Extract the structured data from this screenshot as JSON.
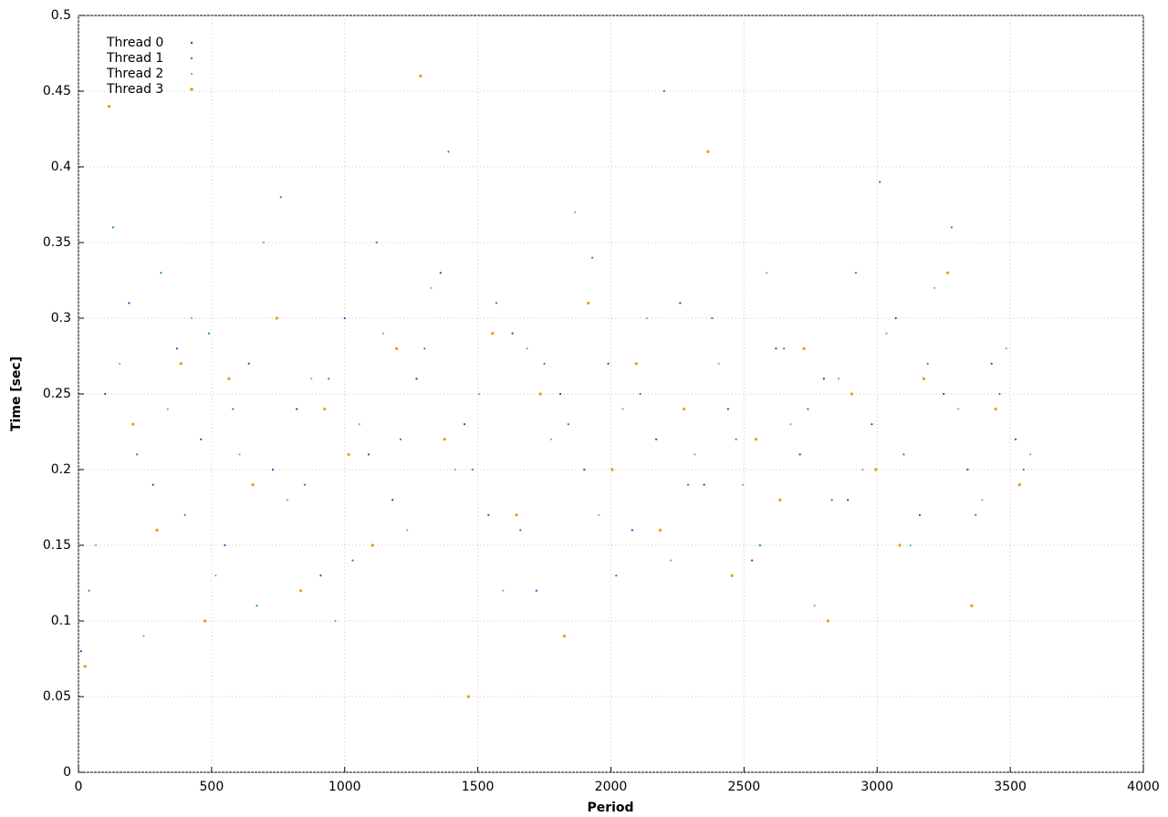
{
  "chart_data": {
    "type": "scatter",
    "x_label": "Period",
    "y_label": "Time [sec]",
    "xlim": [
      0,
      4000
    ],
    "xticks": [
      0,
      500,
      1000,
      1500,
      2000,
      2500,
      3000,
      3500,
      4000
    ],
    "ylim": [
      0,
      0.5
    ],
    "yticks": [
      0,
      0.05,
      0.1,
      0.15,
      0.2,
      0.25,
      0.3,
      0.35,
      0.4,
      0.45,
      0.5
    ],
    "grid": true,
    "legend": "top-left",
    "series": [
      {
        "name": "Thread 0",
        "color": "#9400d3",
        "x": [
          10,
          100,
          190,
          280,
          370,
          460,
          550,
          640,
          730,
          820,
          910,
          1000,
          1090,
          1180,
          1270,
          1360,
          1450,
          1540,
          1630,
          1720,
          1810,
          1900,
          1990,
          2080,
          2170,
          2260,
          2350,
          2440,
          2530,
          2620,
          2710,
          2800,
          2890,
          2980,
          3070,
          3160,
          3250,
          3340,
          3430,
          3520
        ],
        "values": [
          0.08,
          0.25,
          0.31,
          0.19,
          0.28,
          0.22,
          0.15,
          0.27,
          0.2,
          0.24,
          0.13,
          0.3,
          0.21,
          0.18,
          0.26,
          0.33,
          0.23,
          0.17,
          0.29,
          0.12,
          0.25,
          0.2,
          0.27,
          0.16,
          0.22,
          0.31,
          0.19,
          0.24,
          0.14,
          0.28,
          0.21,
          0.26,
          0.18,
          0.23,
          0.3,
          0.17,
          0.25,
          0.2,
          0.27,
          0.22
        ]
      },
      {
        "name": "Thread 1",
        "color": "#009e73",
        "x": [
          40,
          130,
          220,
          310,
          400,
          490,
          580,
          670,
          760,
          850,
          940,
          1030,
          1120,
          1210,
          1300,
          1390,
          1480,
          1570,
          1660,
          1750,
          1840,
          1930,
          2020,
          2110,
          2200,
          2290,
          2380,
          2470,
          2560,
          2650,
          2740,
          2830,
          2920,
          3010,
          3100,
          3190,
          3280,
          3370,
          3460,
          3550
        ],
        "values": [
          0.12,
          0.36,
          0.21,
          0.33,
          0.17,
          0.29,
          0.24,
          0.11,
          0.38,
          0.19,
          0.26,
          0.14,
          0.35,
          0.22,
          0.28,
          0.41,
          0.2,
          0.31,
          0.16,
          0.27,
          0.23,
          0.34,
          0.13,
          0.25,
          0.45,
          0.19,
          0.3,
          0.22,
          0.15,
          0.28,
          0.24,
          0.18,
          0.33,
          0.39,
          0.21,
          0.27,
          0.36,
          0.17,
          0.25,
          0.2
        ]
      },
      {
        "name": "Thread 2",
        "color": "#56b4e9",
        "x": [
          65,
          155,
          245,
          335,
          425,
          515,
          605,
          695,
          785,
          875,
          965,
          1055,
          1145,
          1235,
          1325,
          1415,
          1505,
          1595,
          1685,
          1775,
          1865,
          1955,
          2045,
          2135,
          2225,
          2315,
          2405,
          2495,
          2585,
          2675,
          2765,
          2855,
          2945,
          3035,
          3125,
          3215,
          3305,
          3395,
          3485,
          3575
        ],
        "values": [
          0.15,
          0.27,
          0.09,
          0.24,
          0.3,
          0.13,
          0.21,
          0.35,
          0.18,
          0.26,
          0.1,
          0.23,
          0.29,
          0.16,
          0.32,
          0.2,
          0.25,
          0.12,
          0.28,
          0.22,
          0.37,
          0.17,
          0.24,
          0.3,
          0.14,
          0.21,
          0.27,
          0.19,
          0.33,
          0.23,
          0.11,
          0.26,
          0.2,
          0.29,
          0.15,
          0.32,
          0.24,
          0.18,
          0.28,
          0.21
        ]
      },
      {
        "name": "Thread 3",
        "color": "#e69f00",
        "x": [
          25,
          115,
          205,
          295,
          385,
          475,
          565,
          655,
          745,
          835,
          925,
          1015,
          1105,
          1195,
          1285,
          1375,
          1465,
          1555,
          1645,
          1735,
          1825,
          1915,
          2005,
          2095,
          2185,
          2275,
          2365,
          2455,
          2545,
          2635,
          2725,
          2815,
          2905,
          2995,
          3085,
          3175,
          3265,
          3355,
          3445,
          3535
        ],
        "values": [
          0.07,
          0.44,
          0.23,
          0.16,
          0.27,
          0.1,
          0.26,
          0.19,
          0.3,
          0.12,
          0.24,
          0.21,
          0.15,
          0.28,
          0.46,
          0.22,
          0.05,
          0.29,
          0.17,
          0.25,
          0.09,
          0.31,
          0.2,
          0.27,
          0.16,
          0.24,
          0.41,
          0.13,
          0.22,
          0.18,
          0.28,
          0.1,
          0.25,
          0.2,
          0.15,
          0.26,
          0.33,
          0.11,
          0.24,
          0.19
        ]
      }
    ]
  }
}
